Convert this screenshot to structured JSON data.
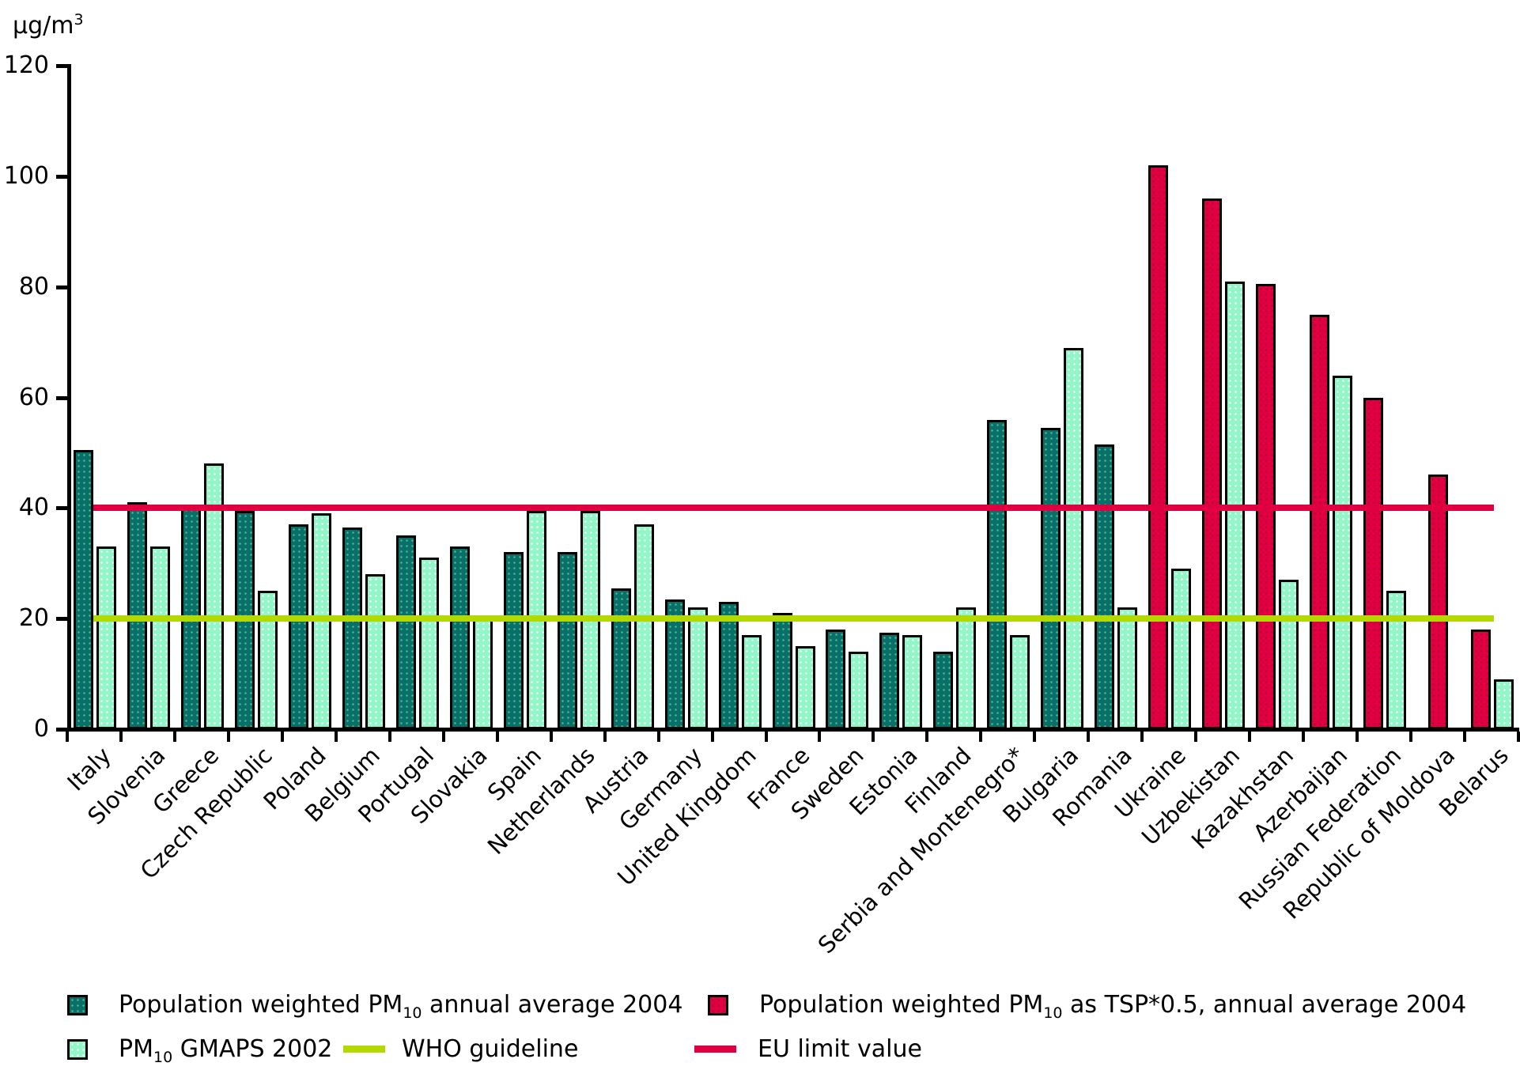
{
  "chart_data": {
    "type": "bar",
    "unit": {
      "text": "µg/m",
      "sup": "3"
    },
    "ylim": [
      0,
      120
    ],
    "yticks": [
      120,
      100,
      80,
      60,
      40,
      20,
      0
    ],
    "grid": false,
    "legend_position": "bottom",
    "series": [
      {
        "id": "pm10_2004",
        "name": "Population weighted PM10 annual average 2004",
        "color": "#0a6f68"
      },
      {
        "id": "gmaps_2002",
        "name": "PM10 GMAPS 2002",
        "color": "#93f6c8"
      },
      {
        "id": "tsp_2004",
        "name": "Population weighted PM10 as TSP*0.5, annual average 2004",
        "color": "#e00041"
      }
    ],
    "reference_lines": [
      {
        "name": "EU limit value",
        "value": 40,
        "color": "#e00041"
      },
      {
        "name": "WHO guideline",
        "value": 20,
        "color": "#b3d900"
      }
    ],
    "countries": [
      {
        "label": "Italy",
        "pm10_2004": 50.5,
        "gmaps_2002": 33,
        "tsp_2004": null
      },
      {
        "label": "Slovenia",
        "pm10_2004": 41,
        "gmaps_2002": 33,
        "tsp_2004": null
      },
      {
        "label": "Greece",
        "pm10_2004": 40.5,
        "gmaps_2002": 48,
        "tsp_2004": null
      },
      {
        "label": "Czech Republic",
        "pm10_2004": 39.5,
        "gmaps_2002": 25,
        "tsp_2004": null
      },
      {
        "label": "Poland",
        "pm10_2004": 37,
        "gmaps_2002": 39,
        "tsp_2004": null
      },
      {
        "label": "Belgium",
        "pm10_2004": 36.5,
        "gmaps_2002": 28,
        "tsp_2004": null
      },
      {
        "label": "Portugal",
        "pm10_2004": 35,
        "gmaps_2002": 31,
        "tsp_2004": null
      },
      {
        "label": "Slovakia",
        "pm10_2004": 33,
        "gmaps_2002": 20,
        "tsp_2004": null
      },
      {
        "label": "Spain",
        "pm10_2004": 32,
        "gmaps_2002": 39.5,
        "tsp_2004": null
      },
      {
        "label": "Netherlands",
        "pm10_2004": 32,
        "gmaps_2002": 39.5,
        "tsp_2004": null
      },
      {
        "label": "Austria",
        "pm10_2004": 25.5,
        "gmaps_2002": 37,
        "tsp_2004": null
      },
      {
        "label": "Germany",
        "pm10_2004": 23.5,
        "gmaps_2002": 22,
        "tsp_2004": null
      },
      {
        "label": "United Kingdom",
        "pm10_2004": 23,
        "gmaps_2002": 17,
        "tsp_2004": null
      },
      {
        "label": "France",
        "pm10_2004": 21,
        "gmaps_2002": 15,
        "tsp_2004": null
      },
      {
        "label": "Sweden",
        "pm10_2004": 18,
        "gmaps_2002": 14,
        "tsp_2004": null
      },
      {
        "label": "Estonia",
        "pm10_2004": 17.5,
        "gmaps_2002": 17,
        "tsp_2004": null
      },
      {
        "label": "Finland",
        "pm10_2004": 14,
        "gmaps_2002": 22,
        "tsp_2004": null
      },
      {
        "label": "Serbia and Montenegro*",
        "pm10_2004": 56,
        "gmaps_2002": 17,
        "tsp_2004": null
      },
      {
        "label": "Bulgaria",
        "pm10_2004": 54.5,
        "gmaps_2002": 69,
        "tsp_2004": null
      },
      {
        "label": "Romania",
        "pm10_2004": 51.5,
        "gmaps_2002": 22,
        "tsp_2004": null
      },
      {
        "label": "Ukraine",
        "pm10_2004": null,
        "gmaps_2002": 29,
        "tsp_2004": 102
      },
      {
        "label": "Uzbekistan",
        "pm10_2004": null,
        "gmaps_2002": 81,
        "tsp_2004": 96
      },
      {
        "label": "Kazakhstan",
        "pm10_2004": null,
        "gmaps_2002": 27,
        "tsp_2004": 80.5
      },
      {
        "label": "Azerbaijan",
        "pm10_2004": null,
        "gmaps_2002": 64,
        "tsp_2004": 75
      },
      {
        "label": "Russian Federation",
        "pm10_2004": null,
        "gmaps_2002": 25,
        "tsp_2004": 60
      },
      {
        "label": "Republic of Moldova",
        "pm10_2004": null,
        "gmaps_2002": null,
        "tsp_2004": 46
      },
      {
        "label": "Belarus",
        "pm10_2004": null,
        "gmaps_2002": 9,
        "tsp_2004": 18
      }
    ]
  },
  "legend": {
    "items": [
      {
        "pre": "Population weighted PM",
        "sub": "10",
        "post": " annual average 2004"
      },
      {
        "pre": "Population weighted PM",
        "sub": "10",
        "post": " as TSP*0.5, annual average 2004"
      },
      {
        "pre": "PM",
        "sub": "10",
        "post": " GMAPS 2002"
      },
      {
        "pre": "WHO guideline",
        "sub": "",
        "post": ""
      },
      {
        "pre": "EU limit value",
        "sub": "",
        "post": ""
      }
    ]
  },
  "colors": {
    "dark_series": "#0a6f68",
    "mint_series": "#93f6c8",
    "red_series": "#e00041",
    "who_line": "#b3d900",
    "eu_line": "#e00041",
    "axis": "#000000"
  }
}
